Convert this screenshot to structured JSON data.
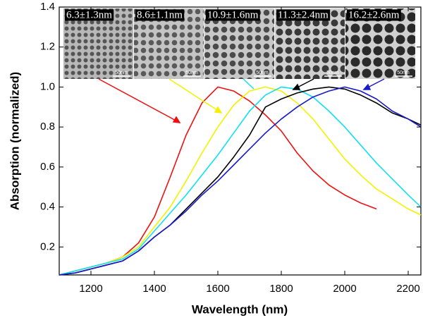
{
  "chart_data": {
    "type": "line",
    "xlabel": "Wavelength (nm)",
    "ylabel": "Absorption (normalized)",
    "xlim": [
      1100,
      2240
    ],
    "ylim": [
      0.06,
      1.4
    ],
    "xticks": [
      1200,
      1400,
      1600,
      1800,
      2000,
      2200
    ],
    "yticks": [
      0.2,
      0.4,
      0.6,
      0.8,
      {
        "value": 1,
        "label": "1.0"
      },
      1.2,
      1.4
    ],
    "x": [
      1100,
      1150,
      1200,
      1250,
      1300,
      1350,
      1400,
      1450,
      1500,
      1550,
      1600,
      1650,
      1700,
      1750,
      1800,
      1850,
      1900,
      1950,
      2000,
      2050,
      2100,
      2150,
      2200,
      2240
    ],
    "series": [
      {
        "color": "#ee1111",
        "values": [
          0.06,
          0.08,
          0.1,
          0.12,
          0.15,
          0.22,
          0.35,
          0.55,
          0.76,
          0.92,
          1.0,
          0.98,
          0.93,
          0.86,
          0.78,
          0.67,
          0.58,
          0.51,
          0.46,
          0.42,
          0.39,
          null,
          null,
          null
        ]
      },
      {
        "color": "#f2f200",
        "values": [
          0.06,
          0.08,
          0.1,
          0.12,
          0.15,
          0.2,
          0.3,
          0.4,
          0.53,
          0.67,
          0.8,
          0.91,
          0.98,
          1.0,
          0.98,
          0.92,
          0.84,
          0.74,
          0.64,
          0.56,
          0.49,
          0.44,
          0.39,
          0.36
        ]
      },
      {
        "color": "#11e0ee",
        "values": [
          0.06,
          0.08,
          0.1,
          0.12,
          0.14,
          0.19,
          0.28,
          0.37,
          0.46,
          0.56,
          0.66,
          0.77,
          0.88,
          0.96,
          1.0,
          0.99,
          0.95,
          0.88,
          0.8,
          0.71,
          0.62,
          0.54,
          0.46,
          0.4
        ]
      },
      {
        "color": "#000000",
        "values": [
          0.06,
          0.07,
          0.09,
          0.11,
          0.13,
          0.18,
          0.25,
          0.31,
          0.39,
          0.47,
          0.55,
          0.65,
          0.76,
          0.9,
          0.94,
          0.97,
          0.99,
          1.0,
          0.99,
          0.96,
          0.92,
          0.87,
          0.84,
          0.81
        ]
      },
      {
        "color": "#1a1acc",
        "values": [
          0.06,
          0.07,
          0.09,
          0.11,
          0.13,
          0.18,
          0.25,
          0.31,
          0.38,
          0.46,
          0.53,
          0.61,
          0.69,
          0.77,
          0.84,
          0.9,
          0.95,
          0.98,
          1.0,
          0.98,
          0.94,
          0.88,
          0.84,
          0.8
        ]
      }
    ],
    "insets": [
      {
        "label": "6.3±1.3nm",
        "scale": "50nm"
      },
      {
        "label": "8.6±1.1nm",
        "scale": "50nm"
      },
      {
        "label": "10.9±1.6nm",
        "scale": "50nm"
      },
      {
        "label": "11.3±2.4nm",
        "scale": "50nm"
      },
      {
        "label": "16.2±2.6nm",
        "scale": "50nm"
      }
    ]
  }
}
